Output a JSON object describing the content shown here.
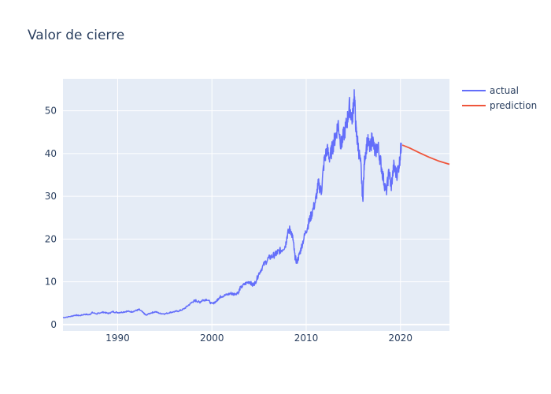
{
  "chart_data": {
    "type": "line",
    "title": "Valor de cierre",
    "xlabel": "",
    "ylabel": "",
    "xlim": [
      1984.2,
      2025.2
    ],
    "ylim": [
      -1.5,
      57.5
    ],
    "x_ticks": [
      1990,
      2000,
      2010,
      2020
    ],
    "y_ticks": [
      0,
      10,
      20,
      30,
      40,
      50
    ],
    "grid": true,
    "legend_position": "top-right",
    "series": [
      {
        "name": "actual",
        "color": "#636efa",
        "x": [
          1984.2,
          1985,
          1985.5,
          1986,
          1986.5,
          1987,
          1987.3,
          1987.8,
          1988,
          1988.5,
          1989,
          1989.5,
          1990,
          1990.5,
          1991,
          1991.5,
          1992,
          1992.3,
          1992.8,
          1993,
          1993.5,
          1994,
          1994.5,
          1995,
          1995.5,
          1996,
          1996.5,
          1997,
          1997.5,
          1998,
          1998.3,
          1998.7,
          1999,
          1999.5,
          2000,
          2000.5,
          2000.8,
          2001,
          2001.5,
          2002,
          2002.3,
          2002.8,
          2003,
          2003.5,
          2004,
          2004.3,
          2004.6,
          2005,
          2005.5,
          2006,
          2006.4,
          2006.8,
          2007,
          2007.4,
          2007.8,
          2008,
          2008.3,
          2008.6,
          2008.8,
          2009,
          2009.3,
          2009.6,
          2010,
          2010.3,
          2010.6,
          2011,
          2011.3,
          2011.6,
          2011.9,
          2012.2,
          2012.5,
          2012.8,
          2013.1,
          2013.4,
          2013.7,
          2014,
          2014.3,
          2014.6,
          2014.9,
          2015.1,
          2015.3,
          2015.5,
          2015.8,
          2016,
          2016.2,
          2016.5,
          2016.8,
          2017,
          2017.3,
          2017.6,
          2017.9,
          2018.2,
          2018.5,
          2018.8,
          2019,
          2019.3,
          2019.6,
          2019.9,
          2020.1
        ],
        "y": [
          1.6,
          1.9,
          2.2,
          2.1,
          2.4,
          2.3,
          2.8,
          2.5,
          2.7,
          2.9,
          2.6,
          3.0,
          2.8,
          2.9,
          3.1,
          3.0,
          3.3,
          3.5,
          2.6,
          2.2,
          2.7,
          3.0,
          2.6,
          2.5,
          2.8,
          3.0,
          3.2,
          3.6,
          4.5,
          5.4,
          5.6,
          5.2,
          5.7,
          5.9,
          4.8,
          5.5,
          6.4,
          6.6,
          6.9,
          7.3,
          7.1,
          7.5,
          8.5,
          9.5,
          10.1,
          9.2,
          9.8,
          12.0,
          14.0,
          15.5,
          16.0,
          16.5,
          17.0,
          17.5,
          18.5,
          21.0,
          22.5,
          20.0,
          16.0,
          14.5,
          16.5,
          19.0,
          22.0,
          24.0,
          26.0,
          29.0,
          33.0,
          31.0,
          38.0,
          41.0,
          39.0,
          41.5,
          44.0,
          47.0,
          42.0,
          44.5,
          47.0,
          51.0,
          48.0,
          54.0,
          45.0,
          42.0,
          37.0,
          29.0,
          39.0,
          43.0,
          41.0,
          44.0,
          40.0,
          42.0,
          38.0,
          34.0,
          31.0,
          36.0,
          32.0,
          37.0,
          35.0,
          38.0,
          42.5
        ]
      },
      {
        "name": "prediction",
        "color": "#ef553b",
        "x": [
          2020.2,
          2021,
          2022,
          2023,
          2024,
          2025.2
        ],
        "y": [
          42.0,
          41.3,
          40.2,
          39.2,
          38.3,
          37.5
        ]
      }
    ]
  }
}
